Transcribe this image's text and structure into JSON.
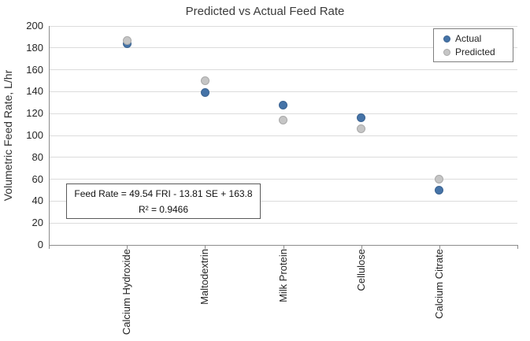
{
  "chart": {
    "title": "Predicted vs Actual Feed Rate"
  },
  "legend": {
    "items": [
      {
        "label": "Actual"
      },
      {
        "label": "Predicted"
      }
    ]
  },
  "annotation": {
    "line1": "Feed Rate = 49.54 FRI - 13.81 SE + 163.8",
    "line2": "R² = 0.9466"
  },
  "chart_data": {
    "type": "scatter",
    "title": "Predicted vs Actual Feed Rate",
    "categories": [
      "Calcium Hydroxide",
      "Maltodextrin",
      "Milk Protein",
      "Cellulose",
      "Calcium Citrate"
    ],
    "series": [
      {
        "name": "Actual",
        "color": "#4573a7",
        "edge": "#3b6391",
        "values": [
          184,
          139,
          128,
          116,
          50
        ]
      },
      {
        "name": "Predicted",
        "color": "#c5c5c5",
        "edge": "#a9a9a9",
        "values": [
          187,
          150,
          114,
          106,
          60
        ]
      }
    ],
    "xlabel": "",
    "ylabel": "Volumetric Feed Rate, L/hr",
    "ylim": [
      0,
      200
    ],
    "yticks": [
      0,
      20,
      40,
      60,
      80,
      100,
      120,
      140,
      160,
      180,
      200
    ],
    "grid": true,
    "legend_position": "top-right",
    "annotation": "Feed Rate = 49.54 FRI - 13.81 SE + 163.8 ; R² = 0.9466"
  }
}
